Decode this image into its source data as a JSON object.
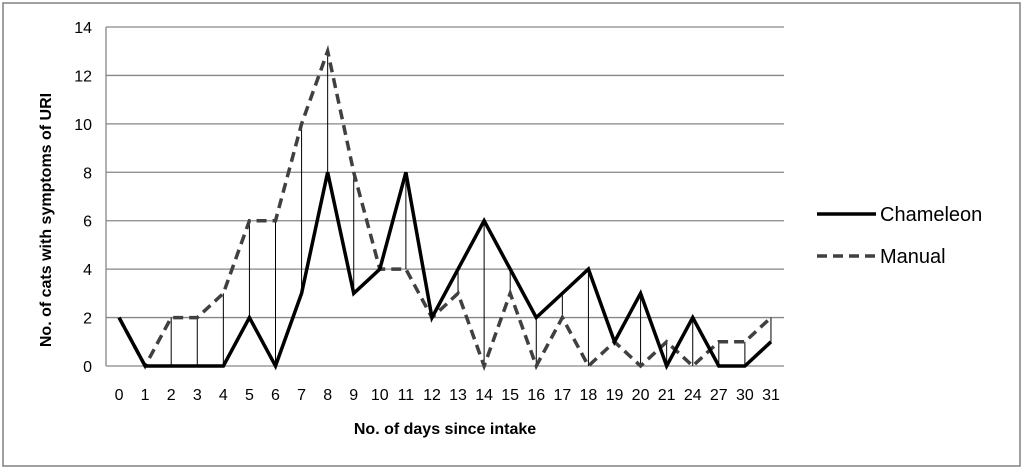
{
  "chart_data": {
    "type": "line",
    "xlabel": "No. of days since intake",
    "ylabel": "No. of cats with symptoms of URI",
    "categories": [
      "0",
      "1",
      "2",
      "3",
      "4",
      "5",
      "6",
      "7",
      "8",
      "9",
      "10",
      "11",
      "12",
      "13",
      "14",
      "15",
      "16",
      "17",
      "18",
      "19",
      "20",
      "21",
      "24",
      "27",
      "30",
      "31"
    ],
    "ylim": [
      0,
      14
    ],
    "yticks": [
      0,
      2,
      4,
      6,
      8,
      10,
      12,
      14
    ],
    "grid": true,
    "legend_position": "right",
    "series": [
      {
        "name": "Chameleon",
        "style": "solid",
        "color": "#000000",
        "values": [
          2,
          0,
          0,
          0,
          0,
          2,
          0,
          3,
          8,
          3,
          4,
          8,
          2,
          4,
          6,
          4,
          2,
          3,
          4,
          1,
          3,
          0,
          2,
          0,
          0,
          1
        ]
      },
      {
        "name": "Manual",
        "style": "dashed",
        "color": "#404040",
        "values": [
          2,
          0,
          2,
          2,
          3,
          6,
          6,
          10,
          13,
          8,
          4,
          4,
          2,
          3,
          0,
          3,
          0,
          2,
          0,
          1,
          0,
          1,
          0,
          1,
          1,
          2
        ]
      }
    ]
  }
}
